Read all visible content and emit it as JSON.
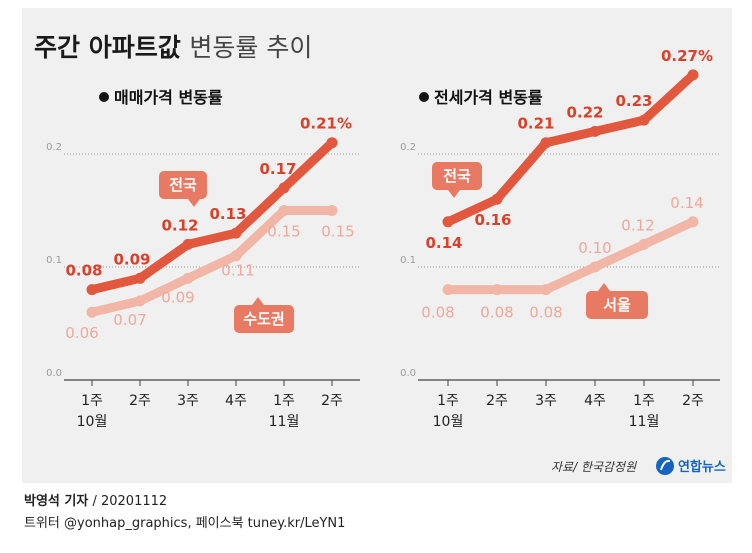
{
  "title": {
    "bold": "주간 아파트값",
    "light": "변동률 추이"
  },
  "source": "자료/ 한국감정원",
  "logo": {
    "text": "연합뉴스",
    "color": "#1565c0"
  },
  "credit": {
    "reporter": "박영석 기자",
    "date": "/ 20201112",
    "social": "트위터 @yonhap_graphics, 페이스북 tuney.kr/LeYN1"
  },
  "colors": {
    "dark": "#e2583e",
    "light": "#f2b6a6",
    "label_light": "#f0a898",
    "badge": "#e87a63"
  },
  "chart_data": [
    {
      "type": "line",
      "title": "매매가격 변동률",
      "categories": [
        "1주\n10월",
        "2주",
        "3주",
        "4주",
        "1주\n11월",
        "2주"
      ],
      "y_ticks": [
        "0.0",
        "0.1",
        "0.2"
      ],
      "ylim": [
        0,
        0.2
      ],
      "series": [
        {
          "name": "전국",
          "values": [
            0.08,
            0.09,
            0.12,
            0.13,
            0.17,
            0.21
          ],
          "labels": [
            "0.08",
            "0.09",
            "0.12",
            "0.13",
            "0.17",
            "0.21%"
          ]
        },
        {
          "name": "수도권",
          "values": [
            0.06,
            0.07,
            0.09,
            0.11,
            0.15,
            0.15
          ],
          "labels": [
            "0.06",
            "0.07",
            "0.09",
            "0.11",
            "0.15",
            "0.15"
          ]
        }
      ]
    },
    {
      "type": "line",
      "title": "전세가격 변동률",
      "categories": [
        "1주\n10월",
        "2주",
        "3주",
        "4주",
        "1주\n11월",
        "2주"
      ],
      "y_ticks": [
        "0.0",
        "0.1",
        "0.2"
      ],
      "ylim": [
        0,
        0.2
      ],
      "series": [
        {
          "name": "전국",
          "values": [
            0.14,
            0.16,
            0.21,
            0.22,
            0.23,
            0.27
          ],
          "labels": [
            "0.14",
            "0.16",
            "0.21",
            "0.22",
            "0.23",
            "0.27%"
          ]
        },
        {
          "name": "서울",
          "values": [
            0.08,
            0.08,
            0.08,
            0.1,
            0.12,
            0.14
          ],
          "labels": [
            "0.08",
            "0.08",
            "0.08",
            "0.10",
            "0.12",
            "0.14"
          ]
        }
      ]
    }
  ]
}
